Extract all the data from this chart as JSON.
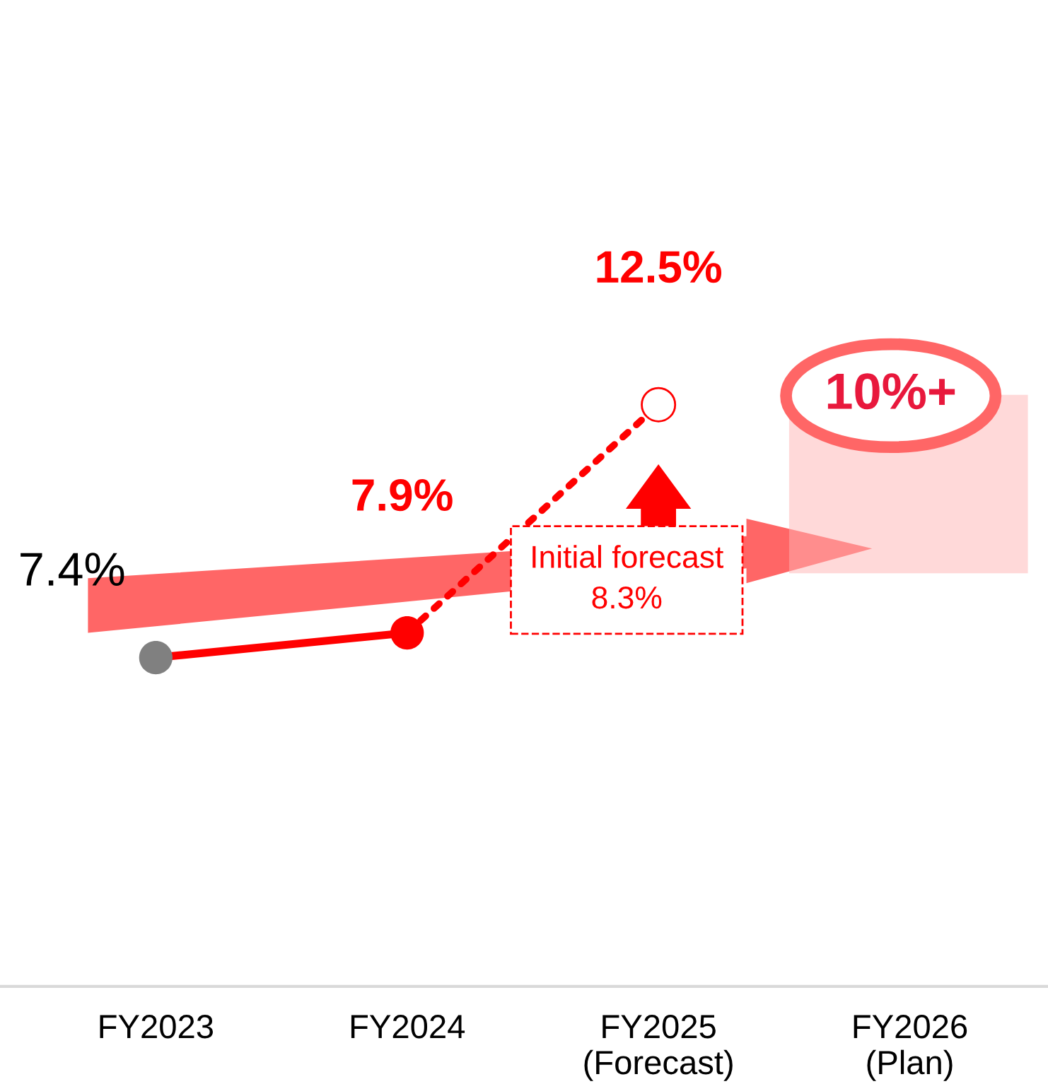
{
  "chart_data": {
    "type": "line",
    "categories": [
      "FY2023",
      "FY2024",
      "FY2025\n(Forecast)",
      "FY2026\n(Plan)"
    ],
    "series": [
      {
        "color": "#ff0000",
        "line_style": "solid",
        "colors": [
          "#808080",
          "#ff0000",
          null,
          null
        ],
        "values": [
          7.4,
          7.9,
          null,
          null
        ],
        "value_labels": [
          "7.4%",
          "7.9%",
          null,
          null
        ]
      },
      {
        "color": "#ff0000",
        "line_style": "dotted",
        "colors": [
          null,
          null,
          "#ff0000",
          null
        ],
        "values": [
          null,
          7.9,
          12.5,
          null
        ],
        "value_labels": [
          null,
          null,
          "12.5%",
          null
        ]
      }
    ],
    "marker": "circle",
    "annotations": [
      "Initial forecast\n8.3%",
      "10%+"
    ],
    "grid": false,
    "legend": false
  }
}
